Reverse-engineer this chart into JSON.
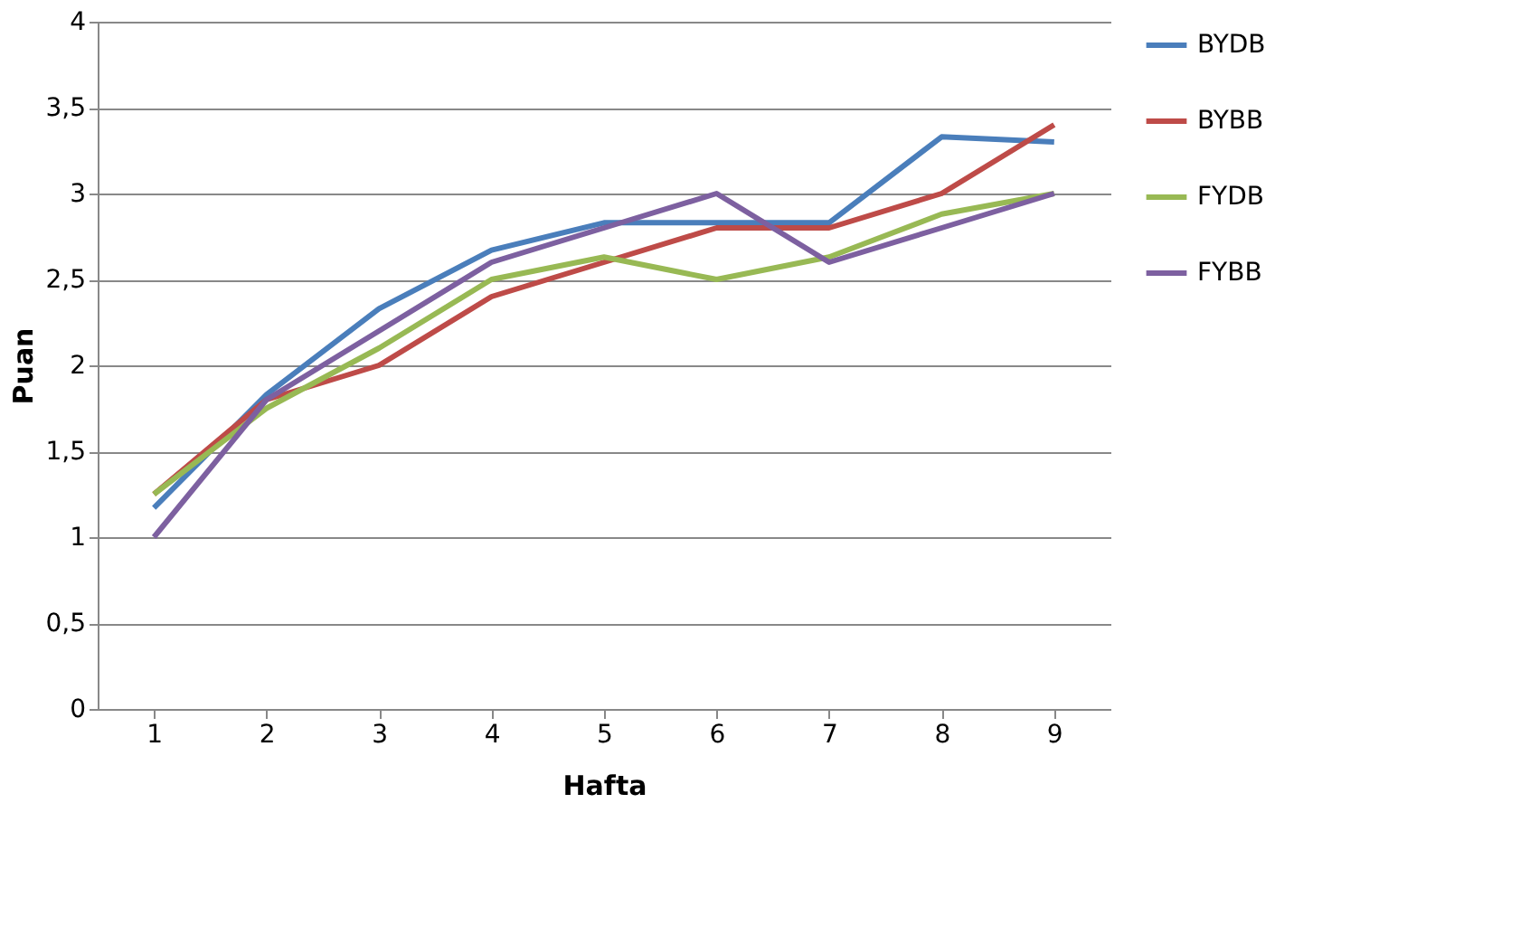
{
  "chart_data": {
    "type": "line",
    "xlabel": "Hafta",
    "ylabel": "Puan",
    "categories": [
      "1",
      "2",
      "3",
      "4",
      "5",
      "6",
      "7",
      "8",
      "9"
    ],
    "ylim": [
      0,
      4
    ],
    "yticks": [
      0,
      {
        "value": 0.5,
        "label": "0,5"
      },
      1,
      {
        "value": 1.5,
        "label": "1,5"
      },
      2,
      {
        "value": 2.5,
        "label": "2,5"
      },
      3,
      {
        "value": 3.5,
        "label": "3,5"
      },
      4
    ],
    "grid": "y",
    "legend": "right",
    "marker": "none",
    "line_style": "solid",
    "series": [
      {
        "name": "BYDB",
        "color": "#4a7ebb",
        "values": [
          1.17,
          1.83,
          2.33,
          2.67,
          2.83,
          2.83,
          2.83,
          3.33,
          3.3
        ]
      },
      {
        "name": "BYBB",
        "color": "#be4b48",
        "values": [
          1.25,
          1.8,
          2.0,
          2.4,
          2.6,
          2.8,
          2.8,
          3.0,
          3.4
        ]
      },
      {
        "name": "FYDB",
        "color": "#98b954",
        "values": [
          1.25,
          1.75,
          2.1,
          2.5,
          2.63,
          2.5,
          2.63,
          2.88,
          3.0
        ]
      },
      {
        "name": "FYBB",
        "color": "#7d60a0",
        "values": [
          1.0,
          1.8,
          2.2,
          2.6,
          2.8,
          3.0,
          2.6,
          2.8,
          3.0
        ]
      }
    ]
  }
}
